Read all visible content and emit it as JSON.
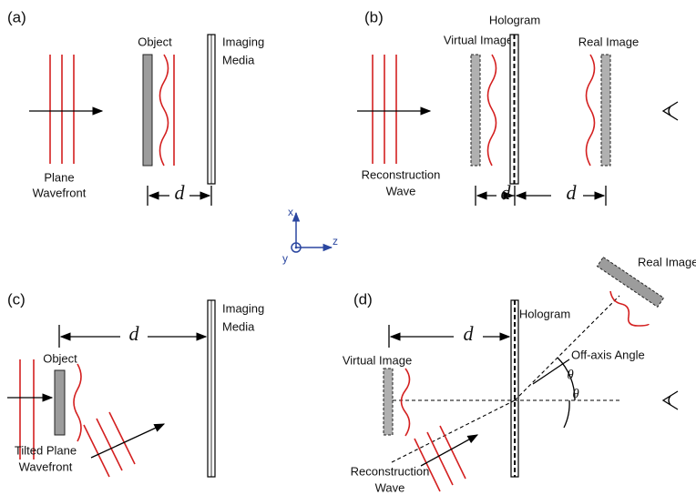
{
  "panels": {
    "a": {
      "label": "(a)",
      "object": "Object",
      "media": [
        "Imaging",
        "Media"
      ],
      "wavefront": [
        "Plane",
        "Wavefront"
      ],
      "distance": "d"
    },
    "b": {
      "label": "(b)",
      "hologram": "Hologram",
      "virtual_image": "Virtual Image",
      "real_image": "Real Image",
      "wave": [
        "Reconstruction",
        "Wave"
      ],
      "distances": [
        "d",
        "d"
      ]
    },
    "c": {
      "label": "(c)",
      "distance": "d",
      "media": [
        "Imaging",
        "Media"
      ],
      "object": "Object",
      "wavefront": [
        "Tilted Plane",
        "Wavefront"
      ]
    },
    "d": {
      "label": "(d)",
      "distance": "d",
      "hologram": "Hologram",
      "real_image": "Real Image",
      "angle_label": "Off-axis Angle",
      "virtual_image": "Virtual Image",
      "angles": [
        "θ",
        "θ"
      ],
      "wave": [
        "Reconstruction",
        "Wave"
      ]
    }
  },
  "axes": {
    "x": "x",
    "y": "y",
    "z": "z"
  }
}
